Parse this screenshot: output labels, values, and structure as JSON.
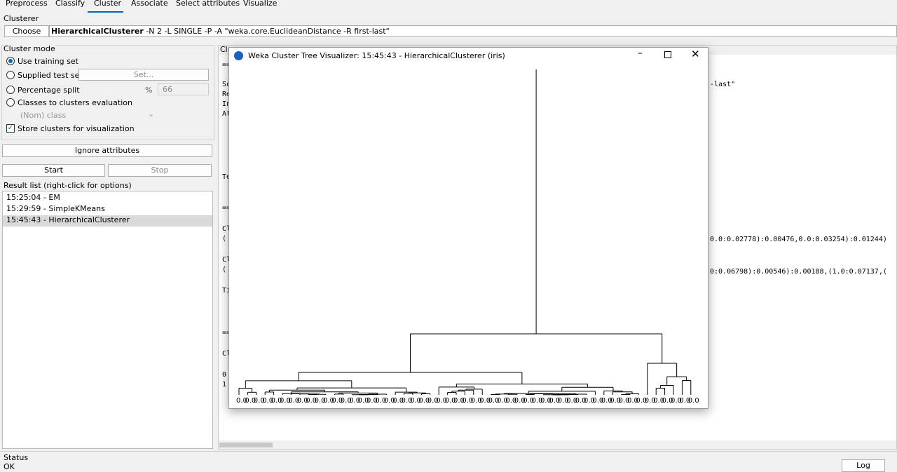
{
  "tabs": [
    "Preprocess",
    "Classify",
    "Cluster",
    "Associate",
    "Select attributes",
    "Visualize"
  ],
  "clusterer": {
    "label": "Clusterer",
    "button": "Choose",
    "name": "HierarchicalClusterer",
    "options": "-N 2 -L SINGLE -P -A \"weka.core.EuclideanDistance -R first-last\""
  },
  "cluster_mode": {
    "label": "Cluster mode",
    "use_training": "Use training set",
    "supplied_test": "Supplied test set",
    "set_button": "Set...",
    "percentage_split": "Percentage split",
    "percent_sign": "%",
    "percent_value": "66",
    "classes_eval": "Classes to clusters evaluation",
    "class_select": "(Nom) class",
    "store_clusters": "Store clusters for visualization"
  },
  "buttons": {
    "ignore": "Ignore attributes",
    "start": "Start",
    "stop": "Stop"
  },
  "result_list": {
    "label": "Result list (right-click for options)",
    "items": [
      "15:25:04 - EM",
      "15:29:59 - SimpleKMeans",
      "15:45:43 - HierarchicalClusterer"
    ]
  },
  "output": {
    "label": "Clu",
    "left_fragments": [
      "==",
      "Sc",
      "Re",
      "In",
      "At",
      "Te",
      "==",
      "Cl",
      "(",
      "Cl",
      "(",
      "Ti",
      "==",
      "Cl",
      "0",
      "1"
    ],
    "right_fragments": [
      "-last\"",
      "0.0:0.02778):0.00476,0.0:0.03254):0.01244)",
      "0:0.06798):0.00546):0.00188,(1.0:0.07137,("
    ]
  },
  "window": {
    "title": "Weka Cluster Tree Visualizer: 15:45:43 - HierarchicalClusterer (iris)",
    "leaf_label": "0.0"
  },
  "status": {
    "label": "Status",
    "text": "OK",
    "log": "Log"
  }
}
